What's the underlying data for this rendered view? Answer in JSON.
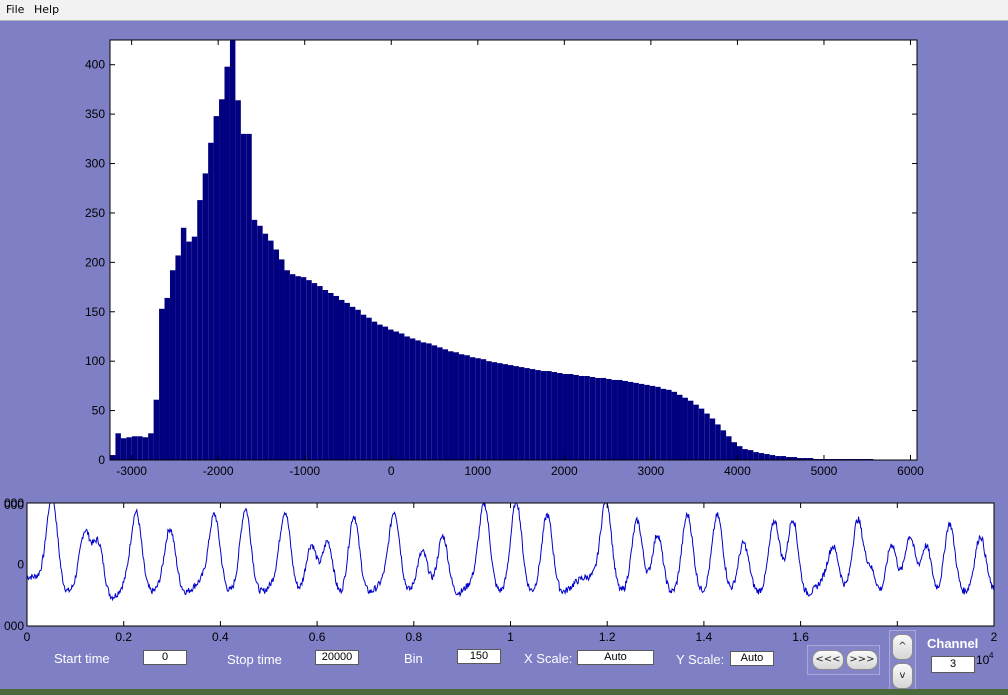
{
  "menu": {
    "items": [
      "File",
      "Help"
    ]
  },
  "colors": {
    "background": "#7f7fc6",
    "bars": "#000080",
    "trace": "#0000cc",
    "plot_bg": "#ffffff"
  },
  "controls": {
    "start_label": "Start time",
    "start_value": "0",
    "stop_label": "Stop time",
    "stop_value": "20000",
    "bin_label": "Bin",
    "bin_value": "150",
    "xscale_label": "X Scale:",
    "xscale_value": "Auto",
    "yscale_label": "Y Scale:",
    "yscale_value": "Auto",
    "prev_button": "<<<",
    "next_button": ">>>",
    "up_button": "^",
    "down_button": "v",
    "channel_label": "Channel",
    "channel_value": "3"
  },
  "chart_data": [
    {
      "type": "bar",
      "title": "",
      "xlabel": "",
      "ylabel": "",
      "xlim": [
        -3250,
        6075
      ],
      "ylim": [
        0,
        425
      ],
      "xticks": [
        -3000,
        -2000,
        -1000,
        0,
        1000,
        2000,
        3000,
        4000,
        5000,
        6000
      ],
      "yticks": [
        0,
        50,
        100,
        150,
        200,
        250,
        300,
        350,
        400
      ],
      "grid": false,
      "bin_start": -3250,
      "bin_width": 63,
      "values": [
        5,
        27,
        22,
        23,
        24,
        24,
        23,
        27,
        61,
        153,
        164,
        192,
        207,
        235,
        221,
        226,
        263,
        290,
        321,
        348,
        365,
        398,
        425,
        364,
        330,
        330,
        243,
        237,
        229,
        222,
        213,
        203,
        192,
        188,
        186,
        185,
        182,
        179,
        176,
        172,
        169,
        166,
        162,
        159,
        155,
        152,
        147,
        144,
        140,
        137,
        135,
        132,
        130,
        128,
        125,
        123,
        121,
        119,
        118,
        116,
        114,
        112,
        110,
        109,
        107,
        106,
        104,
        103,
        102,
        100,
        99,
        98,
        97,
        96,
        95,
        94,
        93,
        92,
        91,
        90,
        90,
        89,
        88,
        87,
        87,
        86,
        85,
        85,
        84,
        83,
        83,
        82,
        81,
        81,
        80,
        79,
        78,
        77,
        76,
        75,
        74,
        72,
        71,
        69,
        66,
        63,
        60,
        56,
        52,
        47,
        42,
        36,
        30,
        24,
        18,
        14,
        11,
        10,
        8,
        7,
        6,
        5,
        4,
        4,
        3,
        3,
        2,
        2,
        2,
        1,
        1,
        1,
        1,
        1,
        1,
        1,
        1,
        1,
        1,
        1
      ]
    },
    {
      "type": "line",
      "title": "",
      "xlabel": "",
      "ylabel": "",
      "xlim": [
        0,
        2
      ],
      "x_multiplier_label": "10^4",
      "ylim": [
        -1000,
        1000
      ],
      "xticks": [
        0,
        0.2,
        0.4,
        0.6,
        0.8,
        1,
        1.2,
        1.4,
        1.6,
        1.8,
        2
      ],
      "xtick_labels": [
        "0",
        "0.2",
        "0.4",
        "0.6",
        "0.8",
        "1",
        "1.2",
        "1.4",
        "1.6",
        "1.8",
        "2"
      ],
      "yticks": [
        -1000,
        0,
        1000,
        2000
      ],
      "ytick_labels": [
        "000",
        "0",
        "000",
        "000"
      ],
      "peaks_x": [
        0.052,
        0.12,
        0.148,
        0.226,
        0.296,
        0.388,
        0.452,
        0.534,
        0.588,
        0.622,
        0.676,
        0.76,
        0.818,
        0.86,
        0.946,
        1.012,
        1.076,
        1.198,
        1.262,
        1.304,
        1.366,
        1.428,
        1.482,
        1.546,
        1.584,
        1.668,
        1.718,
        1.746,
        1.788,
        1.826,
        1.86,
        1.908,
        1.972
      ],
      "peaks_y": [
        1200,
        650,
        680,
        950,
        700,
        900,
        1050,
        950,
        520,
        700,
        1000,
        950,
        380,
        750,
        1080,
        1170,
        950,
        1150,
        850,
        780,
        960,
        950,
        550,
        850,
        1050,
        380,
        950,
        260,
        650,
        780,
        650,
        920,
        600
      ],
      "baseline": -200
    }
  ]
}
